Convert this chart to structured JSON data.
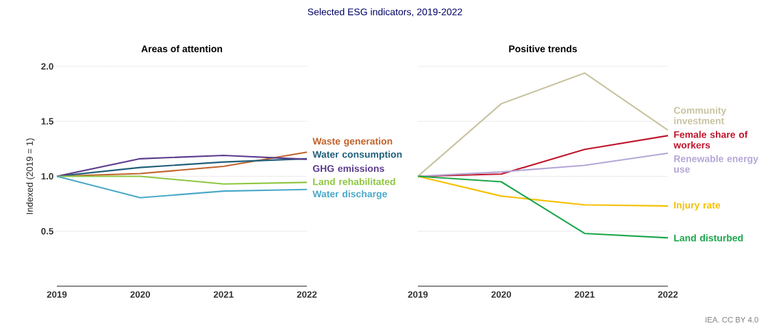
{
  "chart_data": [
    {
      "type": "line",
      "title": "Selected ESG indicators, 2019-2022",
      "subtitle": "Areas of attention",
      "ylabel": "Indexed (2019 = 1)",
      "x": [
        2019,
        2020,
        2021,
        2022
      ],
      "xlim": [
        2019,
        2022
      ],
      "xticks": [
        2019,
        2020,
        2021,
        2022
      ],
      "ylim": [
        0,
        2
      ],
      "yticks": [
        {
          "value": 0.5,
          "label": "0.5"
        },
        {
          "value": 1.0,
          "label": "1.0"
        },
        {
          "value": 1.5,
          "label": "1.5"
        },
        {
          "value": 2.0,
          "label": "2.0"
        }
      ],
      "grid": "y",
      "marker": "none",
      "line_style": "solid",
      "series": [
        {
          "name": "Waste generation",
          "color": "#c0622a",
          "values": [
            1.0,
            1.025,
            1.09,
            1.22
          ]
        },
        {
          "name": "Water consumption",
          "color": "#1f5f7a",
          "values": [
            1.0,
            1.08,
            1.13,
            1.16
          ]
        },
        {
          "name": "GHG emissions",
          "color": "#5b3a8c",
          "values": [
            1.0,
            1.16,
            1.19,
            1.155
          ]
        },
        {
          "name": "Land rehabilitated",
          "color": "#8dc63f",
          "values": [
            1.0,
            1.0,
            0.93,
            0.945
          ]
        },
        {
          "name": "Water discharge",
          "color": "#4aa8c8",
          "values": [
            1.0,
            0.805,
            0.865,
            0.88
          ]
        }
      ]
    },
    {
      "type": "line",
      "subtitle": "Positive trends",
      "annotations": [
        "IEA. CC BY 4.0"
      ],
      "x": [
        2019,
        2020,
        2021,
        2022
      ],
      "xlim": [
        2019,
        2022
      ],
      "xticks": [
        2019,
        2020,
        2021,
        2022
      ],
      "ylim": [
        0,
        2
      ],
      "yticks": [
        0.5,
        1,
        1.5,
        2
      ],
      "tick_labels": "x",
      "grid": "y",
      "marker": "none",
      "line_style": "solid",
      "series": [
        {
          "name": "Female share of workers",
          "color": "#c0142b",
          "values": [
            1.0,
            1.02,
            1.245,
            1.37
          ]
        },
        {
          "name": "Community investment",
          "color": "#c8c3a0",
          "values": [
            1.0,
            1.66,
            1.94,
            1.42
          ]
        },
        {
          "name": "Renewable energy use",
          "color": "#b4a7d6",
          "values": [
            1.0,
            1.04,
            1.1,
            1.21
          ]
        },
        {
          "name": "Injury rate",
          "color": "#f5c000",
          "values": [
            1.0,
            0.82,
            0.74,
            0.73
          ]
        },
        {
          "name": "Land disturbed",
          "color": "#1aa64a",
          "values": [
            1.0,
            0.95,
            0.48,
            0.44
          ]
        }
      ]
    }
  ]
}
